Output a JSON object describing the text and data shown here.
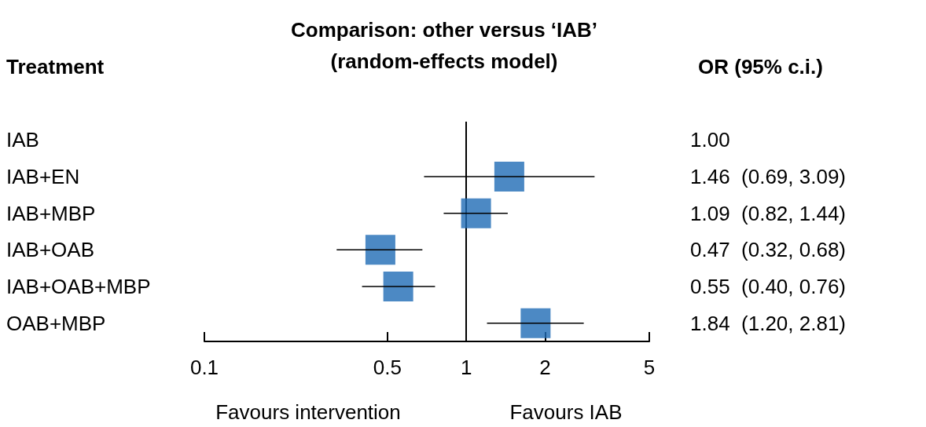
{
  "chart_data": {
    "type": "scatter",
    "orientation": "horizontal",
    "title": "Comparison: other versus ‘IAB’\n(random-effects model)",
    "ylabel": "Treatment",
    "categories": [
      "IAB",
      "IAB+EN",
      "IAB+MBP",
      "IAB+OAB",
      "IAB+OAB+MBP",
      "OAB+MBP"
    ],
    "values": [
      null,
      1.46,
      1.09,
      0.47,
      0.55,
      1.84
    ],
    "errors": [
      null,
      [
        0.69,
        3.09
      ],
      [
        0.82,
        1.44
      ],
      [
        0.32,
        0.68
      ],
      [
        0.4,
        0.76
      ],
      [
        1.2,
        2.81
      ]
    ],
    "value_labels": [
      "1.00",
      "1.46  (0.69, 3.09)",
      "1.09  (0.82, 1.44)",
      "0.47  (0.32, 0.68)",
      "0.55  (0.40, 0.76)",
      "1.84  (1.20, 2.81)"
    ],
    "color": "#1f6bb5",
    "marker": "square",
    "log": "x",
    "xlim": [
      0.1,
      5
    ],
    "xticks": [
      0.1,
      0.5,
      1,
      2,
      5
    ],
    "ref_lines": [
      {
        "axis": "x",
        "value": 1,
        "label": null,
        "color": "#000000"
      }
    ],
    "annotations": [
      "OR (95% c.i.)",
      "Favours intervention",
      "Favours IAB"
    ],
    "grid": false
  }
}
